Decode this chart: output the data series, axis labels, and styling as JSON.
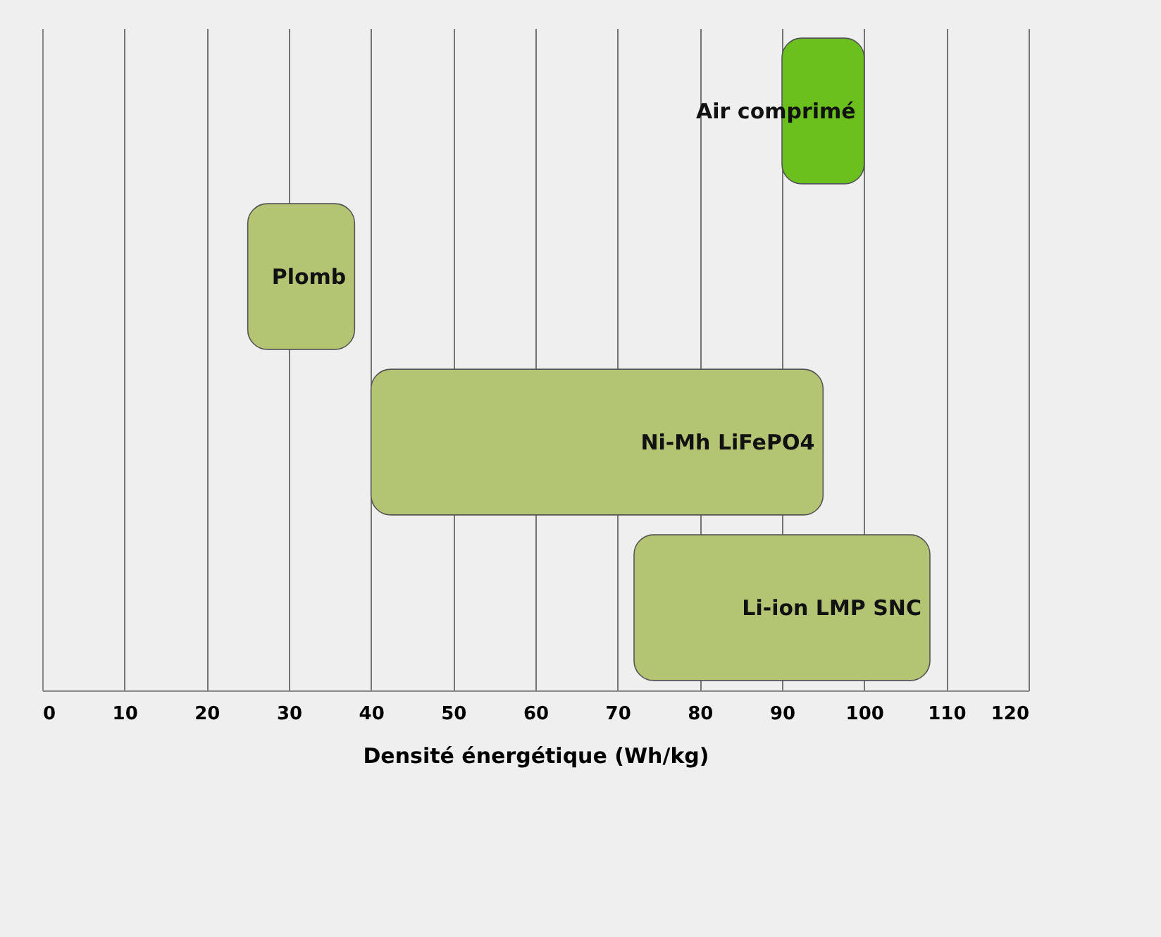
{
  "chart_data": {
    "type": "bar",
    "orientation": "horizontal",
    "xlabel": "Densité énergétique (Wh/kg)",
    "categories": [
      "Air comprimé",
      "Plomb",
      "Ni-Mh LiFePO4",
      "Li-ion LMP SNC"
    ],
    "base": [
      90,
      25,
      40,
      72
    ],
    "values": [
      10,
      13,
      55,
      36
    ],
    "colors": [
      "#6cc01e",
      "#b3c473",
      "#b3c473",
      "#b3c473"
    ],
    "xlim": [
      0,
      120
    ],
    "xticks": [
      0,
      10,
      20,
      30,
      40,
      50,
      60,
      70,
      80,
      90,
      100,
      110,
      120
    ],
    "grid": "x",
    "tick_labels": "x"
  }
}
